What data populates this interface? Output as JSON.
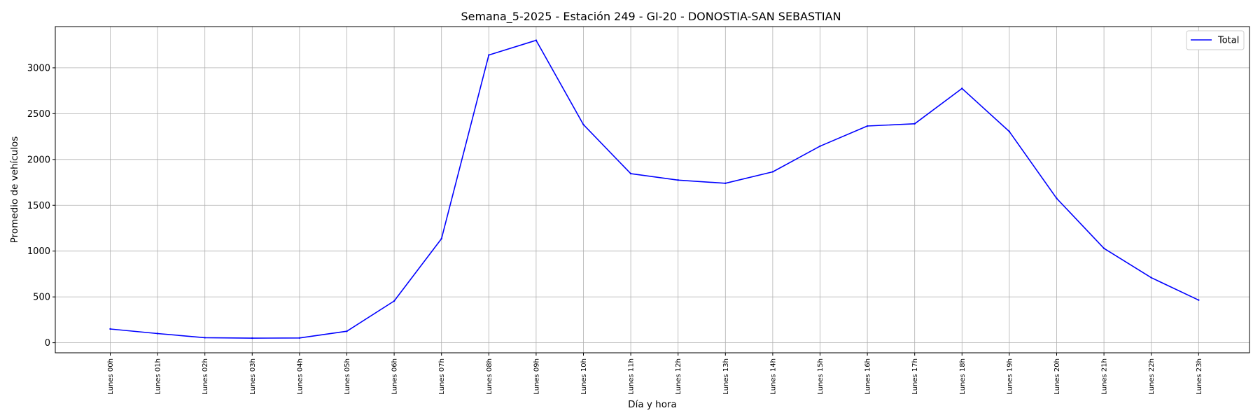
{
  "chart_data": {
    "type": "line",
    "title": "Semana_5-2025 - Estación 249 - GI-20  - DONOSTIA-SAN SEBASTIAN",
    "xlabel": "Día y hora",
    "ylabel": "Promedio de vehículos",
    "categories": [
      "Lunes 00h",
      "Lunes 01h",
      "Lunes 02h",
      "Lunes 03h",
      "Lunes 04h",
      "Lunes 05h",
      "Lunes 06h",
      "Lunes 07h",
      "Lunes 08h",
      "Lunes 09h",
      "Lunes 10h",
      "Lunes 11h",
      "Lunes 12h",
      "Lunes 13h",
      "Lunes 14h",
      "Lunes 15h",
      "Lunes 16h",
      "Lunes 17h",
      "Lunes 18h",
      "Lunes 19h",
      "Lunes 20h",
      "Lunes 21h",
      "Lunes 22h",
      "Lunes 23h"
    ],
    "series": [
      {
        "name": "Total",
        "color": "#0000ff",
        "values": [
          150,
          100,
          55,
          50,
          52,
          125,
          455,
          1135,
          3140,
          3300,
          2380,
          1845,
          1775,
          1740,
          1865,
          2145,
          2365,
          2390,
          2775,
          2305,
          1575,
          1030,
          710,
          465
        ]
      }
    ],
    "ylim": [
      -110,
      3450
    ],
    "yticks": [
      "0",
      "500",
      "1000",
      "1500",
      "2000",
      "2500",
      "3000"
    ],
    "grid": true,
    "legend_position": "top-right"
  }
}
